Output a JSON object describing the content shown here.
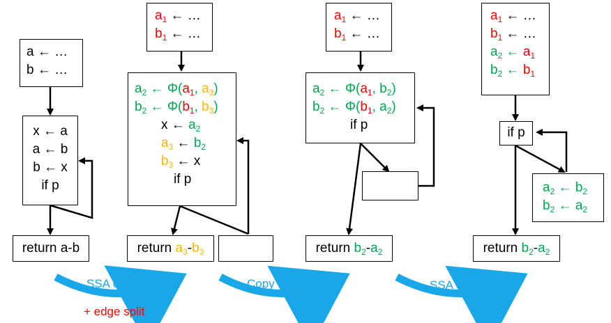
{
  "arrow": "←",
  "dots": "…",
  "phi": "Φ",
  "d1": {
    "entry": [
      {
        "var": "a",
        "rhs": "…"
      },
      {
        "var": "b",
        "rhs": "…"
      }
    ],
    "body": [
      "x ← a",
      "a ← b",
      "b ← x",
      "if p"
    ],
    "ret": "return a-b"
  },
  "d2": {
    "entry": [
      {
        "var": "a",
        "sub": "1",
        "rhs": "…"
      },
      {
        "var": "b",
        "sub": "1",
        "rhs": "…"
      }
    ],
    "phi": [
      {
        "lv": "a",
        "ls": "2",
        "a1v": "a",
        "a1s": "1",
        "a2v": "a",
        "a2s": "3"
      },
      {
        "lv": "b",
        "ls": "2",
        "a1v": "b",
        "a1s": "1",
        "a2v": "b",
        "a2s": "3"
      }
    ],
    "x_line": {
      "lhs": "x",
      "rv": "a",
      "rs": "2"
    },
    "a3_line": {
      "lv": "a",
      "ls": "3",
      "rv": "b",
      "rs": "2"
    },
    "b3_line": {
      "lv": "b",
      "ls": "3",
      "rhs": "x"
    },
    "if": "if p",
    "ret": {
      "prefix": "return ",
      "v1": "a",
      "s1": "3",
      "op": "-",
      "v2": "b",
      "s2": "3"
    }
  },
  "d3": {
    "entry": [
      {
        "var": "a",
        "sub": "1",
        "rhs": "…"
      },
      {
        "var": "b",
        "sub": "1",
        "rhs": "…"
      }
    ],
    "phi": [
      {
        "lv": "a",
        "ls": "2",
        "a1v": "a",
        "a1s": "1",
        "a2v": "b",
        "a2s": "2"
      },
      {
        "lv": "b",
        "ls": "2",
        "a1v": "b",
        "a1s": "1",
        "a2v": "a",
        "a2s": "2"
      }
    ],
    "if": "if p",
    "ret": {
      "prefix": "return ",
      "v1": "b",
      "s1": "2",
      "op": "-",
      "v2": "a",
      "s2": "2"
    }
  },
  "d4": {
    "entry_red": [
      {
        "var": "a",
        "sub": "1",
        "rhs": "…"
      },
      {
        "var": "b",
        "sub": "1",
        "rhs": "…"
      }
    ],
    "entry_copy": [
      {
        "lv": "a",
        "ls": "2",
        "rv": "a",
        "rs": "1"
      },
      {
        "lv": "b",
        "ls": "2",
        "rv": "b",
        "rs": "1"
      }
    ],
    "if": "if p",
    "swap": [
      {
        "lv": "a",
        "ls": "2",
        "rv": "b",
        "rs": "2"
      },
      {
        "lv": "b",
        "ls": "2",
        "rv": "a",
        "rs": "2"
      }
    ],
    "ret": {
      "prefix": "return ",
      "v1": "b",
      "s1": "2",
      "op": "-",
      "v2": "a",
      "s2": "2"
    }
  },
  "transforms": [
    {
      "label": "SSA constr."
    },
    {
      "label": "Copy folding"
    },
    {
      "label": "SSA elim"
    }
  ],
  "edge_split_note": "+ edge split",
  "colors": {
    "red": "#ff0000",
    "green": "#00a651",
    "yellow": "#f5b800",
    "blue": "#1aa7e8"
  }
}
